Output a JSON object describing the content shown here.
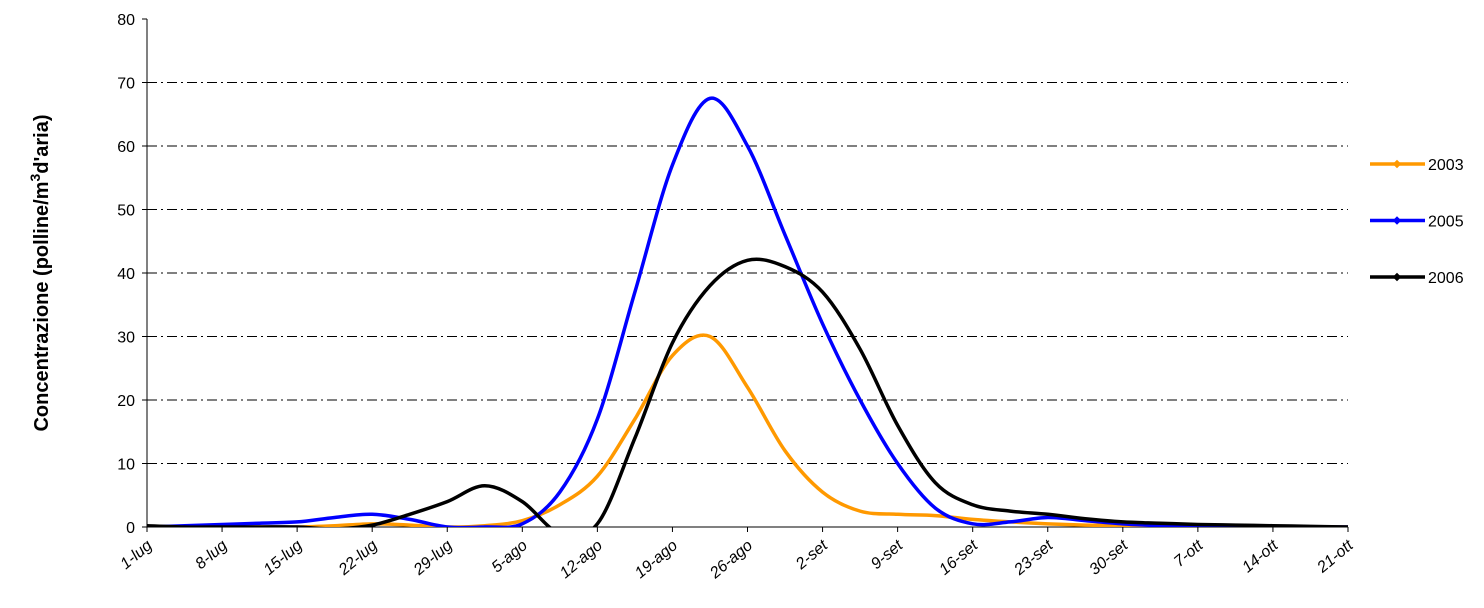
{
  "chart_data": {
    "type": "line",
    "y_label": [
      "Concentrazione (polline/m",
      "3",
      "d'aria)"
    ],
    "categories": [
      "1-lug",
      null,
      "8-lug",
      null,
      "15-lug",
      null,
      "22-lug",
      null,
      "29-lug",
      null,
      "5-ago",
      null,
      "12-ago",
      null,
      "19-ago",
      null,
      "26-ago",
      null,
      "2-set",
      null,
      "9-set",
      null,
      "16-set",
      null,
      "23-set",
      null,
      "30-set",
      null,
      "7-ott",
      null,
      "14-ott",
      null,
      "21-ott"
    ],
    "series": [
      {
        "name": "2003",
        "color": "#ff9900",
        "values": [
          0,
          0,
          0,
          0,
          0,
          0.2,
          0.5,
          0.3,
          0,
          0.2,
          1,
          3.5,
          8,
          17,
          27,
          30,
          22,
          12,
          5.5,
          2.5,
          2,
          1.8,
          1.2,
          0.8,
          0.5,
          0.3,
          0.2,
          0.1,
          0,
          0,
          0,
          0,
          0
        ]
      },
      {
        "name": "2005",
        "color": "#0000ff",
        "values": [
          0,
          0.2,
          0.4,
          0.6,
          0.8,
          1.5,
          2,
          1.2,
          0,
          0,
          0.5,
          5.5,
          17,
          37,
          57,
          67.5,
          60,
          46,
          32,
          20,
          10,
          3,
          0.5,
          0.8,
          1.5,
          1,
          0.5,
          0.2,
          0,
          0,
          0,
          0,
          0
        ]
      },
      {
        "name": "2006",
        "color": "#000000",
        "values": [
          0.2,
          0,
          0,
          0,
          0,
          -0.3,
          0.3,
          2,
          4,
          6.5,
          4,
          -1,
          0.5,
          14,
          29,
          38,
          42,
          41,
          37,
          28,
          16,
          7,
          3.5,
          2.5,
          2,
          1.3,
          0.8,
          0.6,
          0.4,
          0.3,
          0.2,
          0.1,
          0
        ]
      }
    ],
    "ylim": [
      0,
      80
    ],
    "yticks": [
      0,
      10,
      20,
      30,
      40,
      50,
      60,
      70,
      80
    ],
    "grid": true
  }
}
